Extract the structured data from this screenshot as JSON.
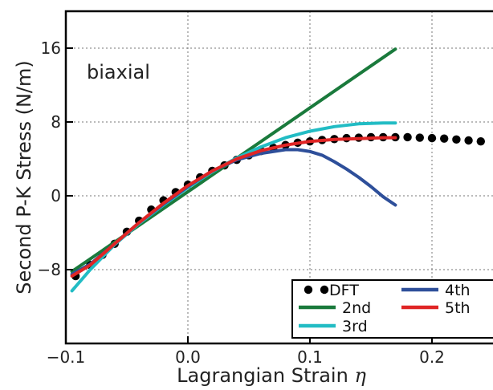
{
  "chart_data": {
    "type": "line",
    "title": "",
    "annotation": "biaxial",
    "xlabel": "Lagrangian Strain",
    "xlabel_symbol": "η",
    "ylabel": "Second P-K Stress (N/m)",
    "xlim": [
      -0.1,
      0.25
    ],
    "ylim": [
      -16,
      20
    ],
    "xticks": [
      -0.1,
      0.0,
      0.1,
      0.2
    ],
    "xtick_labels": [
      "−0.1",
      "0.0",
      "0.1",
      "0.2"
    ],
    "yticks": [
      -8,
      0,
      8,
      16
    ],
    "ytick_labels": [
      "−8",
      "0",
      "8",
      "16"
    ],
    "grid": true,
    "legend_position": "bottom-right",
    "dft": {
      "name": "DFT",
      "color": "#000000",
      "x": [
        -0.092,
        -0.08,
        -0.07,
        -0.06,
        -0.05,
        -0.04,
        -0.03,
        -0.02,
        -0.01,
        0.0,
        0.01,
        0.02,
        0.03,
        0.04,
        0.05,
        0.06,
        0.07,
        0.08,
        0.09,
        0.1,
        0.11,
        0.12,
        0.13,
        0.14,
        0.15,
        0.16,
        0.17,
        0.18,
        0.19,
        0.2,
        0.21,
        0.22,
        0.23,
        0.24
      ],
      "y": [
        -8.7,
        -7.5,
        -6.4,
        -5.2,
        -3.9,
        -2.7,
        -1.5,
        -0.5,
        0.4,
        1.2,
        2.0,
        2.7,
        3.3,
        3.9,
        4.4,
        4.85,
        5.2,
        5.5,
        5.75,
        5.9,
        6.05,
        6.15,
        6.25,
        6.3,
        6.35,
        6.35,
        6.35,
        6.35,
        6.3,
        6.25,
        6.2,
        6.1,
        6.0,
        5.9
      ]
    },
    "series": [
      {
        "name": "2nd",
        "color": "#1a7a3c",
        "x": [
          -0.095,
          0.17
        ],
        "y": [
          -8.2,
          15.9
        ]
      },
      {
        "name": "3rd",
        "color": "#22bcc4",
        "x": [
          -0.095,
          -0.08,
          -0.06,
          -0.04,
          -0.02,
          0.0,
          0.02,
          0.04,
          0.06,
          0.08,
          0.1,
          0.12,
          0.14,
          0.16,
          0.17
        ],
        "y": [
          -10.3,
          -8.0,
          -5.3,
          -3.0,
          -1.0,
          0.9,
          2.6,
          4.1,
          5.3,
          6.3,
          7.0,
          7.5,
          7.8,
          7.9,
          7.9
        ]
      },
      {
        "name": "4th",
        "color": "#2e4f9a",
        "x": [
          -0.095,
          -0.08,
          -0.06,
          -0.04,
          -0.02,
          0.0,
          0.02,
          0.04,
          0.06,
          0.08,
          0.09,
          0.1,
          0.11,
          0.12,
          0.13,
          0.14,
          0.15,
          0.16,
          0.17
        ],
        "y": [
          -8.5,
          -7.4,
          -5.2,
          -2.9,
          -0.9,
          1.0,
          2.7,
          3.9,
          4.6,
          5.0,
          5.0,
          4.8,
          4.4,
          3.7,
          2.9,
          2.0,
          1.0,
          -0.1,
          -1.0
        ]
      },
      {
        "name": "5th",
        "color": "#e02525",
        "x": [
          -0.095,
          -0.08,
          -0.06,
          -0.04,
          -0.02,
          0.0,
          0.02,
          0.04,
          0.06,
          0.08,
          0.1,
          0.12,
          0.14,
          0.16,
          0.17
        ],
        "y": [
          -8.7,
          -7.5,
          -5.2,
          -2.9,
          -0.8,
          1.1,
          2.7,
          4.0,
          4.9,
          5.5,
          5.9,
          6.1,
          6.2,
          6.3,
          6.3
        ]
      }
    ]
  }
}
